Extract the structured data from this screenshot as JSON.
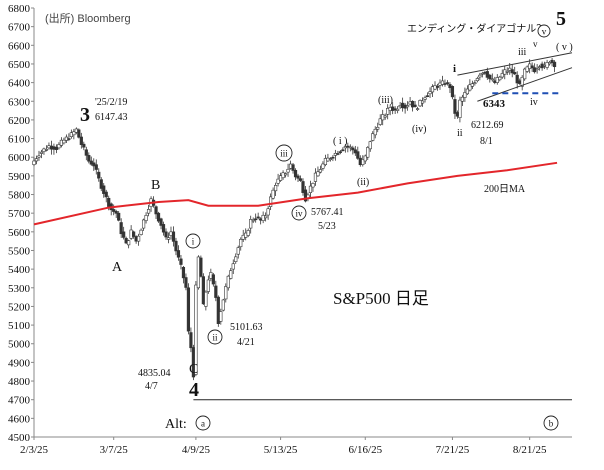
{
  "chart_data": {
    "type": "candlestick",
    "source": "(出所) Bloomberg",
    "title": "S&P500 日足",
    "ylim": [
      4500,
      6800
    ],
    "yticks": [
      4500,
      4600,
      4700,
      4800,
      4900,
      5000,
      5100,
      5200,
      5300,
      5400,
      5500,
      5600,
      5700,
      5800,
      5900,
      6000,
      6100,
      6200,
      6300,
      6400,
      6500,
      6600,
      6700,
      6800
    ],
    "xticks": [
      {
        "label": "2/3/25",
        "day": 0
      },
      {
        "label": "3/7/25",
        "day": 32
      },
      {
        "label": "4/9/25",
        "day": 65
      },
      {
        "label": "5/13/25",
        "day": 99
      },
      {
        "label": "6/16/25",
        "day": 133
      },
      {
        "label": "7/21/25",
        "day": 168
      },
      {
        "label": "8/21/25",
        "day": 199
      }
    ],
    "day_range": [
      0,
      216
    ],
    "ohlc_path": [
      [
        0,
        5960
      ],
      [
        3,
        6020
      ],
      [
        7,
        6060
      ],
      [
        10,
        6050
      ],
      [
        13,
        6090
      ],
      [
        16,
        6120
      ],
      [
        18,
        6147
      ],
      [
        20,
        6070
      ],
      [
        23,
        5980
      ],
      [
        25,
        5960
      ],
      [
        27,
        5880
      ],
      [
        30,
        5780
      ],
      [
        32,
        5720
      ],
      [
        34,
        5700
      ],
      [
        36,
        5600
      ],
      [
        38,
        5530
      ],
      [
        40,
        5600
      ],
      [
        42,
        5550
      ],
      [
        44,
        5620
      ],
      [
        46,
        5700
      ],
      [
        48,
        5770
      ],
      [
        50,
        5700
      ],
      [
        52,
        5640
      ],
      [
        54,
        5560
      ],
      [
        56,
        5600
      ],
      [
        58,
        5500
      ],
      [
        60,
        5410
      ],
      [
        62,
        5300
      ],
      [
        63,
        5060
      ],
      [
        64,
        4980
      ],
      [
        65,
        4835
      ],
      [
        66,
        5300
      ],
      [
        67,
        5460
      ],
      [
        68,
        5360
      ],
      [
        69,
        5200
      ],
      [
        70,
        5280
      ],
      [
        71,
        5350
      ],
      [
        72,
        5370
      ],
      [
        74,
        5250
      ],
      [
        75,
        5120
      ],
      [
        76,
        5180
      ],
      [
        78,
        5300
      ],
      [
        80,
        5400
      ],
      [
        82,
        5480
      ],
      [
        84,
        5560
      ],
      [
        86,
        5580
      ],
      [
        88,
        5660
      ],
      [
        90,
        5680
      ],
      [
        92,
        5660
      ],
      [
        94,
        5690
      ],
      [
        96,
        5780
      ],
      [
        98,
        5860
      ],
      [
        100,
        5890
      ],
      [
        102,
        5920
      ],
      [
        104,
        5960
      ],
      [
        106,
        5900
      ],
      [
        108,
        5870
      ],
      [
        110,
        5780
      ],
      [
        112,
        5840
      ],
      [
        114,
        5900
      ],
      [
        116,
        5940
      ],
      [
        118,
        5980
      ],
      [
        120,
        6000
      ],
      [
        122,
        6020
      ],
      [
        124,
        6040
      ],
      [
        126,
        6060
      ],
      [
        128,
        6050
      ],
      [
        130,
        6030
      ],
      [
        132,
        5960
      ],
      [
        134,
        6000
      ],
      [
        136,
        6090
      ],
      [
        138,
        6150
      ],
      [
        140,
        6200
      ],
      [
        142,
        6230
      ],
      [
        144,
        6270
      ],
      [
        146,
        6250
      ],
      [
        148,
        6290
      ],
      [
        150,
        6270
      ],
      [
        152,
        6300
      ],
      [
        154,
        6260
      ],
      [
        156,
        6290
      ],
      [
        158,
        6330
      ],
      [
        160,
        6350
      ],
      [
        162,
        6380
      ],
      [
        164,
        6390
      ],
      [
        166,
        6400
      ],
      [
        168,
        6380
      ],
      [
        170,
        6240
      ],
      [
        171,
        6212
      ],
      [
        172,
        6300
      ],
      [
        174,
        6340
      ],
      [
        176,
        6380
      ],
      [
        178,
        6410
      ],
      [
        180,
        6450
      ],
      [
        182,
        6460
      ],
      [
        184,
        6420
      ],
      [
        186,
        6400
      ],
      [
        188,
        6430
      ],
      [
        190,
        6460
      ],
      [
        192,
        6470
      ],
      [
        194,
        6440
      ],
      [
        196,
        6380
      ],
      [
        198,
        6460
      ],
      [
        200,
        6490
      ],
      [
        202,
        6470
      ],
      [
        204,
        6500
      ],
      [
        206,
        6481
      ],
      [
        208,
        6520
      ],
      [
        210,
        6500
      ]
    ],
    "series": [
      {
        "name": "200日MA",
        "color": "#e3262b",
        "points": [
          [
            0,
            5640
          ],
          [
            30,
            5730
          ],
          [
            50,
            5760
          ],
          [
            62,
            5770
          ],
          [
            70,
            5740
          ],
          [
            90,
            5740
          ],
          [
            110,
            5780
          ],
          [
            130,
            5810
          ],
          [
            150,
            5860
          ],
          [
            170,
            5900
          ],
          [
            190,
            5930
          ],
          [
            210,
            5970
          ]
        ]
      }
    ],
    "channel": {
      "upper": [
        [
          170,
          6440
        ],
        [
          216,
          6560
        ]
      ],
      "lower": [
        [
          178,
          6300
        ],
        [
          216,
          6480
        ]
      ]
    },
    "hline_6343": {
      "day_start": 184,
      "day_end": 212,
      "value": 6343,
      "label": "6343",
      "color": "#1f4fb4"
    },
    "baseline_4700": {
      "day_start": 64,
      "day_end": 216,
      "value": 4700
    },
    "labels": {
      "w3": "3",
      "w3_date": "'25/2/19",
      "w3_val": "6147.43",
      "A": "A",
      "B": "B",
      "C": "C",
      "w4": "4",
      "w4_val": "4835.04",
      "w4_date": "4/7",
      "i_circ": "i",
      "ii_circ": "ii",
      "ii_val": "5101.63",
      "ii_date": "4/21",
      "iii_circ": "iii",
      "iv_circ": "iv",
      "iv_val": "5767.41",
      "iv_date": "5/23",
      "sub_i": "( i )",
      "sub_ii": "(ii)",
      "sub_iii": "(iii)",
      "sub_iv": "(iv)",
      "ending": "エンディング・ダイアゴナル？",
      "small_i": "i",
      "small_ii": "ii",
      "small_iii": "iii",
      "small_iv": "iv",
      "ii_val2": "6212.69",
      "ii_date2": "8/1",
      "v_circ": "v",
      "v_paren": "( v )",
      "small_v": "v",
      "w5": "5",
      "alt": "Alt:",
      "alt_a": "a",
      "alt_b": "b",
      "ma_label": "200日MA"
    }
  }
}
